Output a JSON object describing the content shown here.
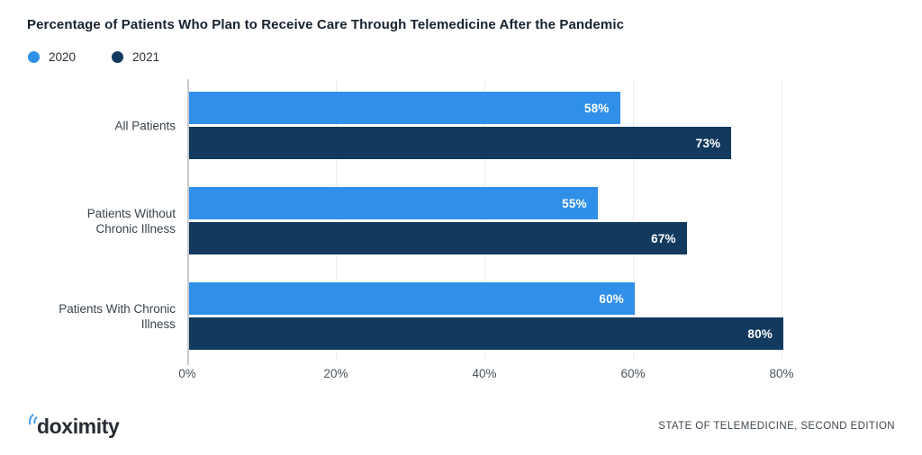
{
  "title": "Percentage of Patients Who Plan to Receive Care Through Telemedicine After the Pandemic",
  "chart_data": {
    "type": "bar",
    "orientation": "horizontal",
    "categories": [
      "All Patients",
      "Patients Without Chronic Illness",
      "Patients With Chronic Illness"
    ],
    "series": [
      {
        "name": "2020",
        "color": "#2f8fe9",
        "values": [
          58,
          55,
          60
        ]
      },
      {
        "name": "2021",
        "color": "#123a5e",
        "values": [
          73,
          67,
          80
        ]
      }
    ],
    "value_suffix": "%",
    "x_ticks": [
      "0%",
      "20%",
      "40%",
      "60%",
      "80%"
    ],
    "xlim": [
      0,
      80
    ],
    "grid": true,
    "legend_position": "top-left",
    "bar_label_color": "#ffffff"
  },
  "footer": {
    "logo_text": "doximity",
    "source_text": "STATE OF TELEMEDICINE, SECOND EDITION"
  }
}
